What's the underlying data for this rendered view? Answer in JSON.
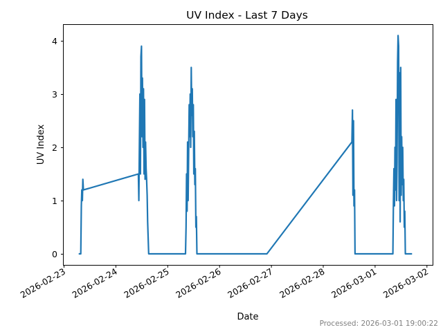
{
  "chart_data": {
    "type": "line",
    "title": "UV Index - Last 7 Days",
    "xlabel": "Date",
    "ylabel": "UV Index",
    "ylim": [
      -0.2,
      4.3
    ],
    "yticks": [
      0,
      1,
      2,
      3,
      4
    ],
    "xtick_labels": [
      "2026-02-23",
      "2026-02-24",
      "2026-02-25",
      "2026-02-26",
      "2026-02-27",
      "2026-02-28",
      "2026-03-01",
      "2026-03-02"
    ],
    "grid": false,
    "legend": null,
    "series": [
      {
        "name": "UV Index",
        "color": "#1f77b4",
        "points_days_since_2026_02_23": [
          [
            0.29,
            0
          ],
          [
            0.33,
            0
          ],
          [
            0.34,
            0.9
          ],
          [
            0.35,
            1.2
          ],
          [
            0.36,
            1.0
          ],
          [
            0.37,
            1.4
          ],
          [
            0.38,
            1.2
          ],
          [
            1.44,
            1.5
          ],
          [
            1.45,
            1.0
          ],
          [
            1.46,
            2.1
          ],
          [
            1.47,
            3.0
          ],
          [
            1.48,
            1.5
          ],
          [
            1.49,
            3.7
          ],
          [
            1.5,
            3.9
          ],
          [
            1.51,
            2.2
          ],
          [
            1.52,
            3.3
          ],
          [
            1.53,
            2.0
          ],
          [
            1.54,
            3.1
          ],
          [
            1.55,
            1.5
          ],
          [
            1.56,
            2.9
          ],
          [
            1.57,
            1.4
          ],
          [
            1.58,
            2.1
          ],
          [
            1.59,
            1.6
          ],
          [
            1.6,
            1.4
          ],
          [
            1.61,
            1.1
          ],
          [
            1.62,
            0.6
          ],
          [
            1.64,
            0
          ],
          [
            2.35,
            0
          ],
          [
            2.36,
            0.5
          ],
          [
            2.37,
            1.5
          ],
          [
            2.38,
            0.8
          ],
          [
            2.39,
            2.1
          ],
          [
            2.4,
            1.0
          ],
          [
            2.42,
            2.8
          ],
          [
            2.43,
            2.2
          ],
          [
            2.44,
            3.0
          ],
          [
            2.45,
            2.0
          ],
          [
            2.46,
            3.5
          ],
          [
            2.47,
            2.6
          ],
          [
            2.48,
            3.1
          ],
          [
            2.49,
            2.2
          ],
          [
            2.5,
            2.8
          ],
          [
            2.51,
            1.5
          ],
          [
            2.52,
            2.3
          ],
          [
            2.53,
            1.3
          ],
          [
            2.54,
            1.6
          ],
          [
            2.55,
            0.5
          ],
          [
            2.56,
            0.7
          ],
          [
            2.57,
            0
          ],
          [
            3.92,
            0
          ],
          [
            5.56,
            2.1
          ],
          [
            5.57,
            2.7
          ],
          [
            5.58,
            1.1
          ],
          [
            5.59,
            2.5
          ],
          [
            5.6,
            0.9
          ],
          [
            5.61,
            1.2
          ],
          [
            5.62,
            0
          ],
          [
            6.35,
            0
          ],
          [
            6.36,
            1.0
          ],
          [
            6.37,
            1.6
          ],
          [
            6.38,
            0.9
          ],
          [
            6.39,
            2.0
          ],
          [
            6.4,
            1.2
          ],
          [
            6.41,
            2.9
          ],
          [
            6.42,
            1.0
          ],
          [
            6.43,
            1.7
          ],
          [
            6.44,
            3.6
          ],
          [
            6.45,
            4.1
          ],
          [
            6.46,
            3.9
          ],
          [
            6.47,
            1.0
          ],
          [
            6.48,
            3.4
          ],
          [
            6.49,
            0.6
          ],
          [
            6.5,
            3.5
          ],
          [
            6.51,
            1.1
          ],
          [
            6.52,
            2.2
          ],
          [
            6.53,
            1.3
          ],
          [
            6.54,
            2.0
          ],
          [
            6.55,
            1.0
          ],
          [
            6.56,
            1.4
          ],
          [
            6.57,
            0.5
          ],
          [
            6.58,
            0.8
          ],
          [
            6.59,
            0
          ],
          [
            6.72,
            0
          ]
        ]
      }
    ]
  },
  "footer": {
    "processed_label": "Processed: 2026-03-01 19:00:22"
  }
}
